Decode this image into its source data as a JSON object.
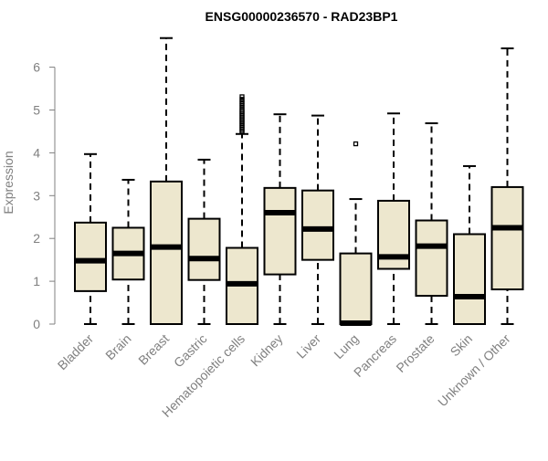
{
  "chart_data": {
    "type": "boxplot",
    "title": "ENSG00000236570 - RAD23BP1",
    "xlabel": "",
    "ylabel": "Expression",
    "ylim": [
      0,
      6.8
    ],
    "yticks": [
      0,
      1,
      2,
      3,
      4,
      5,
      6
    ],
    "grid": false,
    "legend": "none",
    "box_fill": "#ede7ce",
    "box_stroke": "#000000",
    "categories": [
      "Bladder",
      "Brain",
      "Breast",
      "Gastric",
      "Hematopoietic cells",
      "Kidney",
      "Liver",
      "Lung",
      "Pancreas",
      "Prostate",
      "Skin",
      "Unknown / Other"
    ],
    "boxes": [
      {
        "min": 0,
        "q1": 0.77,
        "median": 1.48,
        "q3": 2.37,
        "max": 3.97,
        "outliers": []
      },
      {
        "min": 0,
        "q1": 1.04,
        "median": 1.65,
        "q3": 2.25,
        "max": 3.37,
        "outliers": []
      },
      {
        "min": 0,
        "q1": 0,
        "median": 1.8,
        "q3": 3.33,
        "max": 6.68,
        "outliers": []
      },
      {
        "min": 0,
        "q1": 1.03,
        "median": 1.53,
        "q3": 2.46,
        "max": 3.84,
        "outliers": []
      },
      {
        "min": 0,
        "q1": 0,
        "median": 0.94,
        "q3": 1.78,
        "max": 4.44,
        "outliers": [
          4.48,
          4.52,
          4.56,
          4.6,
          4.64,
          4.68,
          4.72,
          4.76,
          4.8,
          4.84,
          4.88,
          4.92,
          4.96,
          5.0,
          5.05,
          5.1,
          5.15,
          5.2,
          5.25,
          5.31
        ]
      },
      {
        "min": 0,
        "q1": 1.16,
        "median": 2.6,
        "q3": 3.18,
        "max": 4.9,
        "outliers": []
      },
      {
        "min": 0,
        "q1": 1.5,
        "median": 2.22,
        "q3": 3.12,
        "max": 4.87,
        "outliers": []
      },
      {
        "min": 0,
        "q1": 0,
        "median": 0.02,
        "q3": 1.65,
        "max": 2.92,
        "outliers": [
          4.21
        ]
      },
      {
        "min": 0,
        "q1": 1.29,
        "median": 1.57,
        "q3": 2.88,
        "max": 4.92,
        "outliers": []
      },
      {
        "min": 0,
        "q1": 0.66,
        "median": 1.82,
        "q3": 2.42,
        "max": 4.69,
        "outliers": []
      },
      {
        "min": 0,
        "q1": 0,
        "median": 0.64,
        "q3": 2.1,
        "max": 3.69,
        "outliers": []
      },
      {
        "min": 0,
        "q1": 0.81,
        "median": 2.25,
        "q3": 3.2,
        "max": 6.44,
        "outliers": []
      }
    ]
  }
}
